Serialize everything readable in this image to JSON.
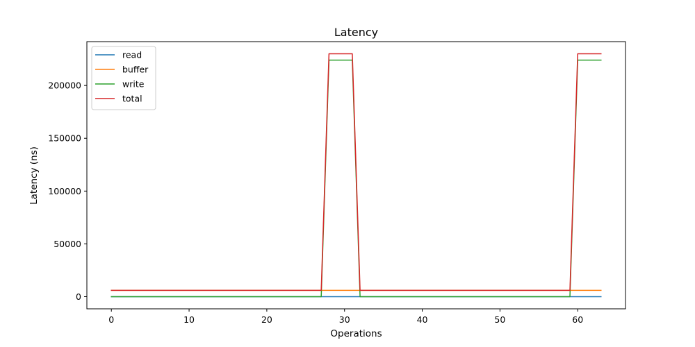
{
  "chart_data": {
    "type": "line",
    "title": "Latency",
    "xlabel": "Operations",
    "ylabel": "Latency (ns)",
    "xlim": [
      -3.15,
      66.15
    ],
    "ylim": [
      -11500,
      241500
    ],
    "xticks": [
      0,
      10,
      20,
      30,
      40,
      50,
      60
    ],
    "xtick_labels": [
      "0",
      "10",
      "20",
      "30",
      "40",
      "50",
      "60"
    ],
    "yticks": [
      0,
      50000,
      100000,
      150000,
      200000
    ],
    "ytick_labels": [
      "0",
      "50000",
      "100000",
      "150000",
      "200000"
    ],
    "grid": false,
    "legend_position": "top-left",
    "x": [
      0,
      1,
      2,
      3,
      4,
      5,
      6,
      7,
      8,
      9,
      10,
      11,
      12,
      13,
      14,
      15,
      16,
      17,
      18,
      19,
      20,
      21,
      22,
      23,
      24,
      25,
      26,
      27,
      28,
      29,
      30,
      31,
      32,
      33,
      34,
      35,
      36,
      37,
      38,
      39,
      40,
      41,
      42,
      43,
      44,
      45,
      46,
      47,
      48,
      49,
      50,
      51,
      52,
      53,
      54,
      55,
      56,
      57,
      58,
      59,
      60,
      61,
      62,
      63
    ],
    "series": [
      {
        "name": "read",
        "color": "#1f77b4",
        "values": [
          0,
          0,
          0,
          0,
          0,
          0,
          0,
          0,
          0,
          0,
          0,
          0,
          0,
          0,
          0,
          0,
          0,
          0,
          0,
          0,
          0,
          0,
          0,
          0,
          0,
          0,
          0,
          0,
          0,
          0,
          0,
          0,
          0,
          0,
          0,
          0,
          0,
          0,
          0,
          0,
          0,
          0,
          0,
          0,
          0,
          0,
          0,
          0,
          0,
          0,
          0,
          0,
          0,
          0,
          0,
          0,
          0,
          0,
          0,
          0,
          0,
          0,
          0,
          0
        ]
      },
      {
        "name": "buffer",
        "color": "#ff7f0e",
        "values": [
          6000,
          6000,
          6000,
          6000,
          6000,
          6000,
          6000,
          6000,
          6000,
          6000,
          6000,
          6000,
          6000,
          6000,
          6000,
          6000,
          6000,
          6000,
          6000,
          6000,
          6000,
          6000,
          6000,
          6000,
          6000,
          6000,
          6000,
          6000,
          6000,
          6000,
          6000,
          6000,
          6000,
          6000,
          6000,
          6000,
          6000,
          6000,
          6000,
          6000,
          6000,
          6000,
          6000,
          6000,
          6000,
          6000,
          6000,
          6000,
          6000,
          6000,
          6000,
          6000,
          6000,
          6000,
          6000,
          6000,
          6000,
          6000,
          6000,
          6000,
          6000,
          6000,
          6000,
          6000
        ]
      },
      {
        "name": "write",
        "color": "#2ca02c",
        "values": [
          0,
          0,
          0,
          0,
          0,
          0,
          0,
          0,
          0,
          0,
          0,
          0,
          0,
          0,
          0,
          0,
          0,
          0,
          0,
          0,
          0,
          0,
          0,
          0,
          0,
          0,
          0,
          0,
          224000,
          224000,
          224000,
          224000,
          0,
          0,
          0,
          0,
          0,
          0,
          0,
          0,
          0,
          0,
          0,
          0,
          0,
          0,
          0,
          0,
          0,
          0,
          0,
          0,
          0,
          0,
          0,
          0,
          0,
          0,
          0,
          0,
          224000,
          224000,
          224000,
          224000
        ]
      },
      {
        "name": "total",
        "color": "#d62728",
        "values": [
          6000,
          6000,
          6000,
          6000,
          6000,
          6000,
          6000,
          6000,
          6000,
          6000,
          6000,
          6000,
          6000,
          6000,
          6000,
          6000,
          6000,
          6000,
          6000,
          6000,
          6000,
          6000,
          6000,
          6000,
          6000,
          6000,
          6000,
          6000,
          230000,
          230000,
          230000,
          230000,
          6000,
          6000,
          6000,
          6000,
          6000,
          6000,
          6000,
          6000,
          6000,
          6000,
          6000,
          6000,
          6000,
          6000,
          6000,
          6000,
          6000,
          6000,
          6000,
          6000,
          6000,
          6000,
          6000,
          6000,
          6000,
          6000,
          6000,
          6000,
          230000,
          230000,
          230000,
          230000
        ]
      }
    ]
  }
}
